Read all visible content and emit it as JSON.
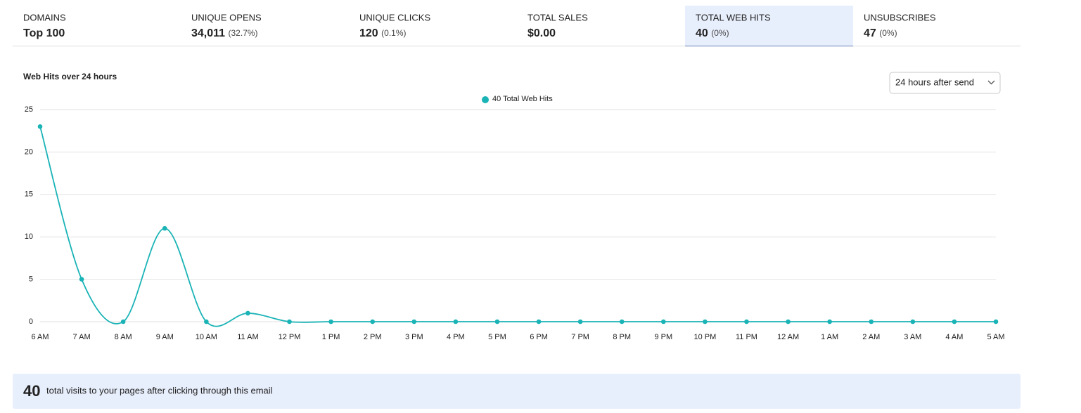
{
  "tabs": [
    {
      "label": "DOMAINS",
      "value": "Top 100"
    },
    {
      "label": "UNIQUE OPENS",
      "value": "34,011",
      "note": "(32.7%)"
    },
    {
      "label": "UNIQUE CLICKS",
      "value": "120",
      "note": "(0.1%)"
    },
    {
      "label": "TOTAL SALES",
      "value": "$0.00"
    },
    {
      "label": "TOTAL WEB HITS",
      "value": "40",
      "note": "(0%)"
    },
    {
      "label": "UNSUBSCRIBES",
      "value": "47",
      "note": "(0%)"
    }
  ],
  "selected_tab": 4,
  "dropdown": "24 hours after send",
  "chart_data": {
    "type": "line",
    "title": "Web Hits over 24 hours",
    "categories": [
      "6 AM",
      "7 AM",
      "8 AM",
      "9 AM",
      "10 AM",
      "11 AM",
      "12 PM",
      "1 PM",
      "2 PM",
      "3 PM",
      "4 PM",
      "5 PM",
      "6 PM",
      "7 PM",
      "8 PM",
      "9 PM",
      "10 PM",
      "11 PM",
      "12 AM",
      "1 AM",
      "2 AM",
      "3 AM",
      "4 AM",
      "5 AM"
    ],
    "series": [
      {
        "name": "40 Total Web Hits",
        "color": "#1ab3b6",
        "values": [
          23,
          5,
          0,
          11,
          0,
          1,
          0,
          0,
          0,
          0,
          0,
          0,
          0,
          0,
          0,
          0,
          0,
          0,
          0,
          0,
          0,
          0,
          0,
          0
        ]
      }
    ],
    "ylim": [
      0,
      25
    ],
    "yticks": [
      0,
      5,
      10,
      15,
      20,
      25
    ],
    "grid": true,
    "smooth": true
  },
  "summary": {
    "value": "40",
    "text": "total visits to your pages after clicking through this email"
  }
}
